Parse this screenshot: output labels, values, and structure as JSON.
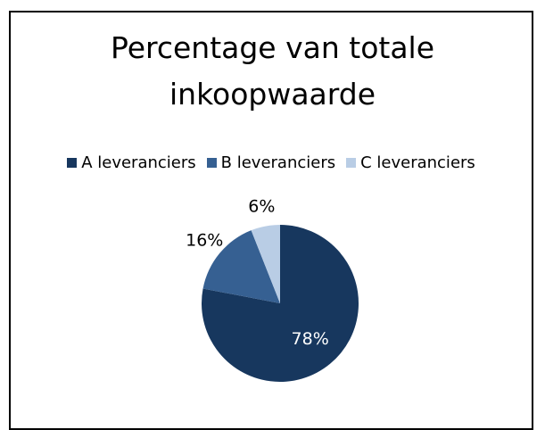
{
  "chart_data": {
    "type": "pie",
    "title": "Percentage van totale inkoopwaarde",
    "categories": [
      "A leveranciers",
      "B leveranciers",
      "C leveranciers"
    ],
    "values": [
      78,
      16,
      6
    ],
    "value_labels": [
      "78%",
      "16%",
      "6%"
    ],
    "colors": [
      "#17375e",
      "#366092",
      "#b9cde5"
    ],
    "legend": "top"
  }
}
